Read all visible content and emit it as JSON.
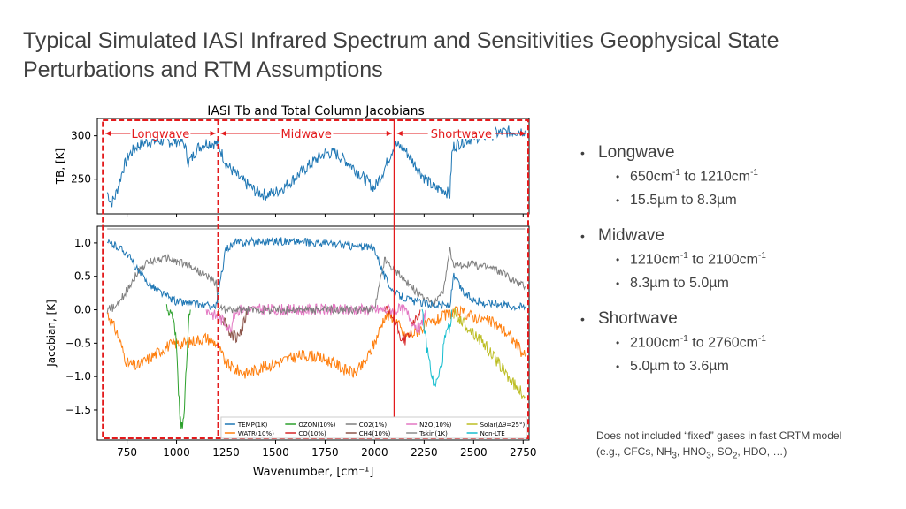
{
  "slide": {
    "title": "Typical Simulated IASI Infrared Spectrum and Sensitivities Geophysical State Perturbations and RTM Assumptions"
  },
  "bullets": [
    {
      "label": "Longwave",
      "sub": [
        {
          "a": "650cm",
          "sa": "-1",
          "b": " to 1210cm",
          "sb": "-1"
        },
        {
          "a": "15.5µm to 8.3µm",
          "sa": "",
          "b": "",
          "sb": ""
        }
      ]
    },
    {
      "label": "Midwave",
      "sub": [
        {
          "a": "1210cm",
          "sa": "-1",
          "b": " to 2100cm",
          "sb": "-1"
        },
        {
          "a": "8.3µm to 5.0µm",
          "sa": "",
          "b": "",
          "sb": ""
        }
      ]
    },
    {
      "label": "Shortwave",
      "sub": [
        {
          "a": "2100cm",
          "sa": "-1",
          "b": " to 2760cm",
          "sb": "-1"
        },
        {
          "a": "5.0µm to 3.6µm",
          "sa": "",
          "b": "",
          "sb": ""
        }
      ]
    }
  ],
  "note": {
    "t1": "Does not included “fixed” gases in fast CRTM model (e.g., CFCs, NH",
    "s1": "3",
    "t2": ", HNO",
    "s2": "3",
    "t3": ", SO",
    "s3": "2",
    "t4": ", HDO, …)"
  },
  "chart_data": {
    "type": "line",
    "title": "IASI Tb and Total Column Jacobians",
    "xlabel": "Wavenumber, [cm⁻¹]",
    "xlim": [
      600,
      2780
    ],
    "xticks": [
      "750",
      "1000",
      "1250",
      "1500",
      "1750",
      "2000",
      "2250",
      "2500",
      "2750"
    ],
    "xtick_values": [
      750,
      1000,
      1250,
      1500,
      1750,
      2000,
      2250,
      2500,
      2750
    ],
    "top_panel": {
      "ylabel": "TB, [K]",
      "ylim": [
        210,
        320
      ],
      "yticks": [
        "300",
        "250"
      ],
      "ytick_values": [
        300,
        250
      ],
      "series": [
        {
          "name": "",
          "color": "#1f77b4",
          "x": [
            650,
            670,
            690,
            710,
            730,
            760,
            800,
            850,
            900,
            950,
            980,
            1000,
            1020,
            1040,
            1060,
            1080,
            1100,
            1150,
            1200,
            1210,
            1250,
            1300,
            1350,
            1400,
            1450,
            1500,
            1550,
            1600,
            1650,
            1700,
            1750,
            1800,
            1850,
            1900,
            1950,
            2000,
            2050,
            2100,
            2150,
            2200,
            2250,
            2300,
            2350,
            2380,
            2390,
            2400,
            2450,
            2500,
            2550,
            2600,
            2650,
            2700,
            2760
          ],
          "y": [
            235,
            222,
            230,
            245,
            262,
            278,
            288,
            293,
            294,
            294,
            293,
            294,
            294,
            290,
            270,
            275,
            285,
            292,
            291,
            290,
            268,
            255,
            245,
            236,
            232,
            235,
            242,
            252,
            262,
            272,
            280,
            280,
            272,
            262,
            250,
            240,
            262,
            290,
            285,
            268,
            252,
            240,
            238,
            232,
            278,
            288,
            294,
            298,
            300,
            302,
            304,
            305,
            306
          ]
        }
      ],
      "region_labels": [
        "Longwave",
        "Midwave",
        "Shortwave"
      ]
    },
    "bottom_panel": {
      "ylabel": "Jacobian, [K]",
      "ylim": [
        -1.95,
        1.25
      ],
      "yticks": [
        "1.0",
        "0.5",
        "0.0",
        "−0.5",
        "−1.0",
        "−1.5"
      ],
      "ytick_values": [
        1.0,
        0.5,
        0.0,
        -0.5,
        -1.0,
        -1.5
      ],
      "series": [
        {
          "name": "TEMP(1K)",
          "color": "#1f77b4",
          "x": [
            650,
            700,
            750,
            800,
            850,
            900,
            950,
            1000,
            1050,
            1100,
            1150,
            1200,
            1250,
            1300,
            1400,
            1500,
            1600,
            1700,
            1800,
            1900,
            2000,
            2050,
            2100,
            2200,
            2300,
            2380,
            2400,
            2450,
            2500,
            2550,
            2600,
            2650,
            2700,
            2760
          ],
          "y": [
            1.0,
            0.95,
            0.85,
            0.6,
            0.42,
            0.3,
            0.2,
            0.12,
            0.1,
            0.08,
            0.06,
            0.05,
            0.92,
            1.0,
            1.02,
            1.03,
            1.02,
            1.0,
            0.98,
            0.95,
            0.92,
            0.5,
            0.25,
            0.12,
            0.08,
            0.06,
            0.5,
            0.25,
            0.15,
            0.1,
            0.1,
            0.08,
            0.06,
            0.05
          ]
        },
        {
          "name": "WATR(10%)",
          "color": "#ff7f0e",
          "x": [
            650,
            700,
            750,
            800,
            850,
            900,
            950,
            1000,
            1050,
            1100,
            1150,
            1200,
            1250,
            1300,
            1350,
            1400,
            1450,
            1500,
            1550,
            1600,
            1650,
            1700,
            1750,
            1800,
            1850,
            1900,
            1950,
            2000,
            2050,
            2100,
            2150,
            2200,
            2250,
            2300,
            2350,
            2400,
            2450,
            2500,
            2550,
            2600,
            2650,
            2700,
            2760
          ],
          "y": [
            -0.05,
            -0.35,
            -0.8,
            -0.85,
            -0.75,
            -0.65,
            -0.55,
            -0.5,
            -0.5,
            -0.45,
            -0.42,
            -0.5,
            -0.8,
            -0.9,
            -0.95,
            -0.9,
            -0.85,
            -0.8,
            -0.75,
            -0.7,
            -0.68,
            -0.7,
            -0.75,
            -0.8,
            -0.9,
            -0.95,
            -0.8,
            -0.5,
            -0.1,
            -0.1,
            -0.4,
            -0.35,
            -0.25,
            -0.18,
            -0.1,
            -0.03,
            -0.05,
            -0.1,
            -0.15,
            -0.2,
            -0.3,
            -0.45,
            -0.7
          ]
        },
        {
          "name": "OZON(10%)",
          "color": "#2ca02c",
          "x": [
            950,
            980,
            1000,
            1010,
            1020,
            1030,
            1040,
            1050,
            1060,
            1070
          ],
          "y": [
            0.0,
            -0.1,
            -0.5,
            -1.2,
            -1.7,
            -1.75,
            -1.5,
            -0.8,
            -0.2,
            0.0
          ]
        },
        {
          "name": "CO(10%)",
          "color": "#d62728",
          "x": [
            2050,
            2100,
            2130,
            2150,
            2170,
            2200,
            2230
          ],
          "y": [
            0.0,
            -0.15,
            -0.4,
            -0.45,
            -0.4,
            -0.2,
            0.0
          ]
        },
        {
          "name": "CO2(1%)",
          "color": "#7f7f7f",
          "x": [
            650,
            700,
            750,
            800,
            850,
            900,
            950,
            1000,
            1050,
            1100,
            1150,
            1200,
            1210,
            1250,
            2000,
            2050,
            2100,
            2200,
            2250,
            2300,
            2350,
            2380,
            2390,
            2400,
            2450,
            2500,
            2550,
            2600,
            2650,
            2700,
            2760
          ],
          "y": [
            0.0,
            0.05,
            0.3,
            0.55,
            0.7,
            0.75,
            0.78,
            0.72,
            0.68,
            0.6,
            0.5,
            0.4,
            0.05,
            0.0,
            0.0,
            0.75,
            0.6,
            0.3,
            0.15,
            0.1,
            0.3,
            0.9,
            0.7,
            0.65,
            0.68,
            0.68,
            0.65,
            0.62,
            0.55,
            0.45,
            0.35
          ]
        },
        {
          "name": "CH4(10%)",
          "color": "#8c564b",
          "x": [
            1200,
            1250,
            1270,
            1300,
            1330,
            1360
          ],
          "y": [
            0.0,
            -0.2,
            -0.35,
            -0.4,
            -0.3,
            0.0
          ]
        },
        {
          "name": "N2O(10%)",
          "color": "#e377c2",
          "x": [
            1150,
            1200,
            1250,
            1270,
            1300,
            2150,
            2200,
            2230,
            2260
          ],
          "y": [
            0.0,
            -0.1,
            -0.2,
            -0.3,
            0.0,
            0.0,
            -0.2,
            -0.3,
            0.0
          ]
        },
        {
          "name": "Tskin(1K)",
          "color": "#8c8c8c",
          "x": [
            650,
            760,
            1000,
            1250,
            2000,
            2100,
            2760
          ],
          "y": [
            1.21,
            1.21,
            1.21,
            1.21,
            1.21,
            1.21,
            1.21
          ]
        },
        {
          "name": "Solar(Δθ=25°)",
          "color": "#bcbd22",
          "x": [
            2400,
            2450,
            2500,
            2550,
            2600,
            2650,
            2700,
            2760
          ],
          "y": [
            -0.05,
            -0.2,
            -0.35,
            -0.5,
            -0.7,
            -0.9,
            -1.1,
            -1.3
          ]
        },
        {
          "name": "Non-LTE",
          "color": "#17becf",
          "x": [
            2240,
            2260,
            2290,
            2300,
            2320,
            2340,
            2350,
            2370,
            2380,
            2390
          ],
          "y": [
            0.0,
            -0.5,
            -1.0,
            -1.15,
            -1.05,
            -0.8,
            -0.5,
            -0.3,
            -0.25,
            0.0
          ]
        }
      ],
      "legend_position": "bottom"
    },
    "regions": [
      {
        "label": "Longwave",
        "from": 650,
        "to": 1210
      },
      {
        "label": "Midwave",
        "from": 1210,
        "to": 2100
      },
      {
        "label": "Shortwave",
        "from": 2100,
        "to": 2760
      }
    ],
    "region_color": "#e31a1c"
  }
}
